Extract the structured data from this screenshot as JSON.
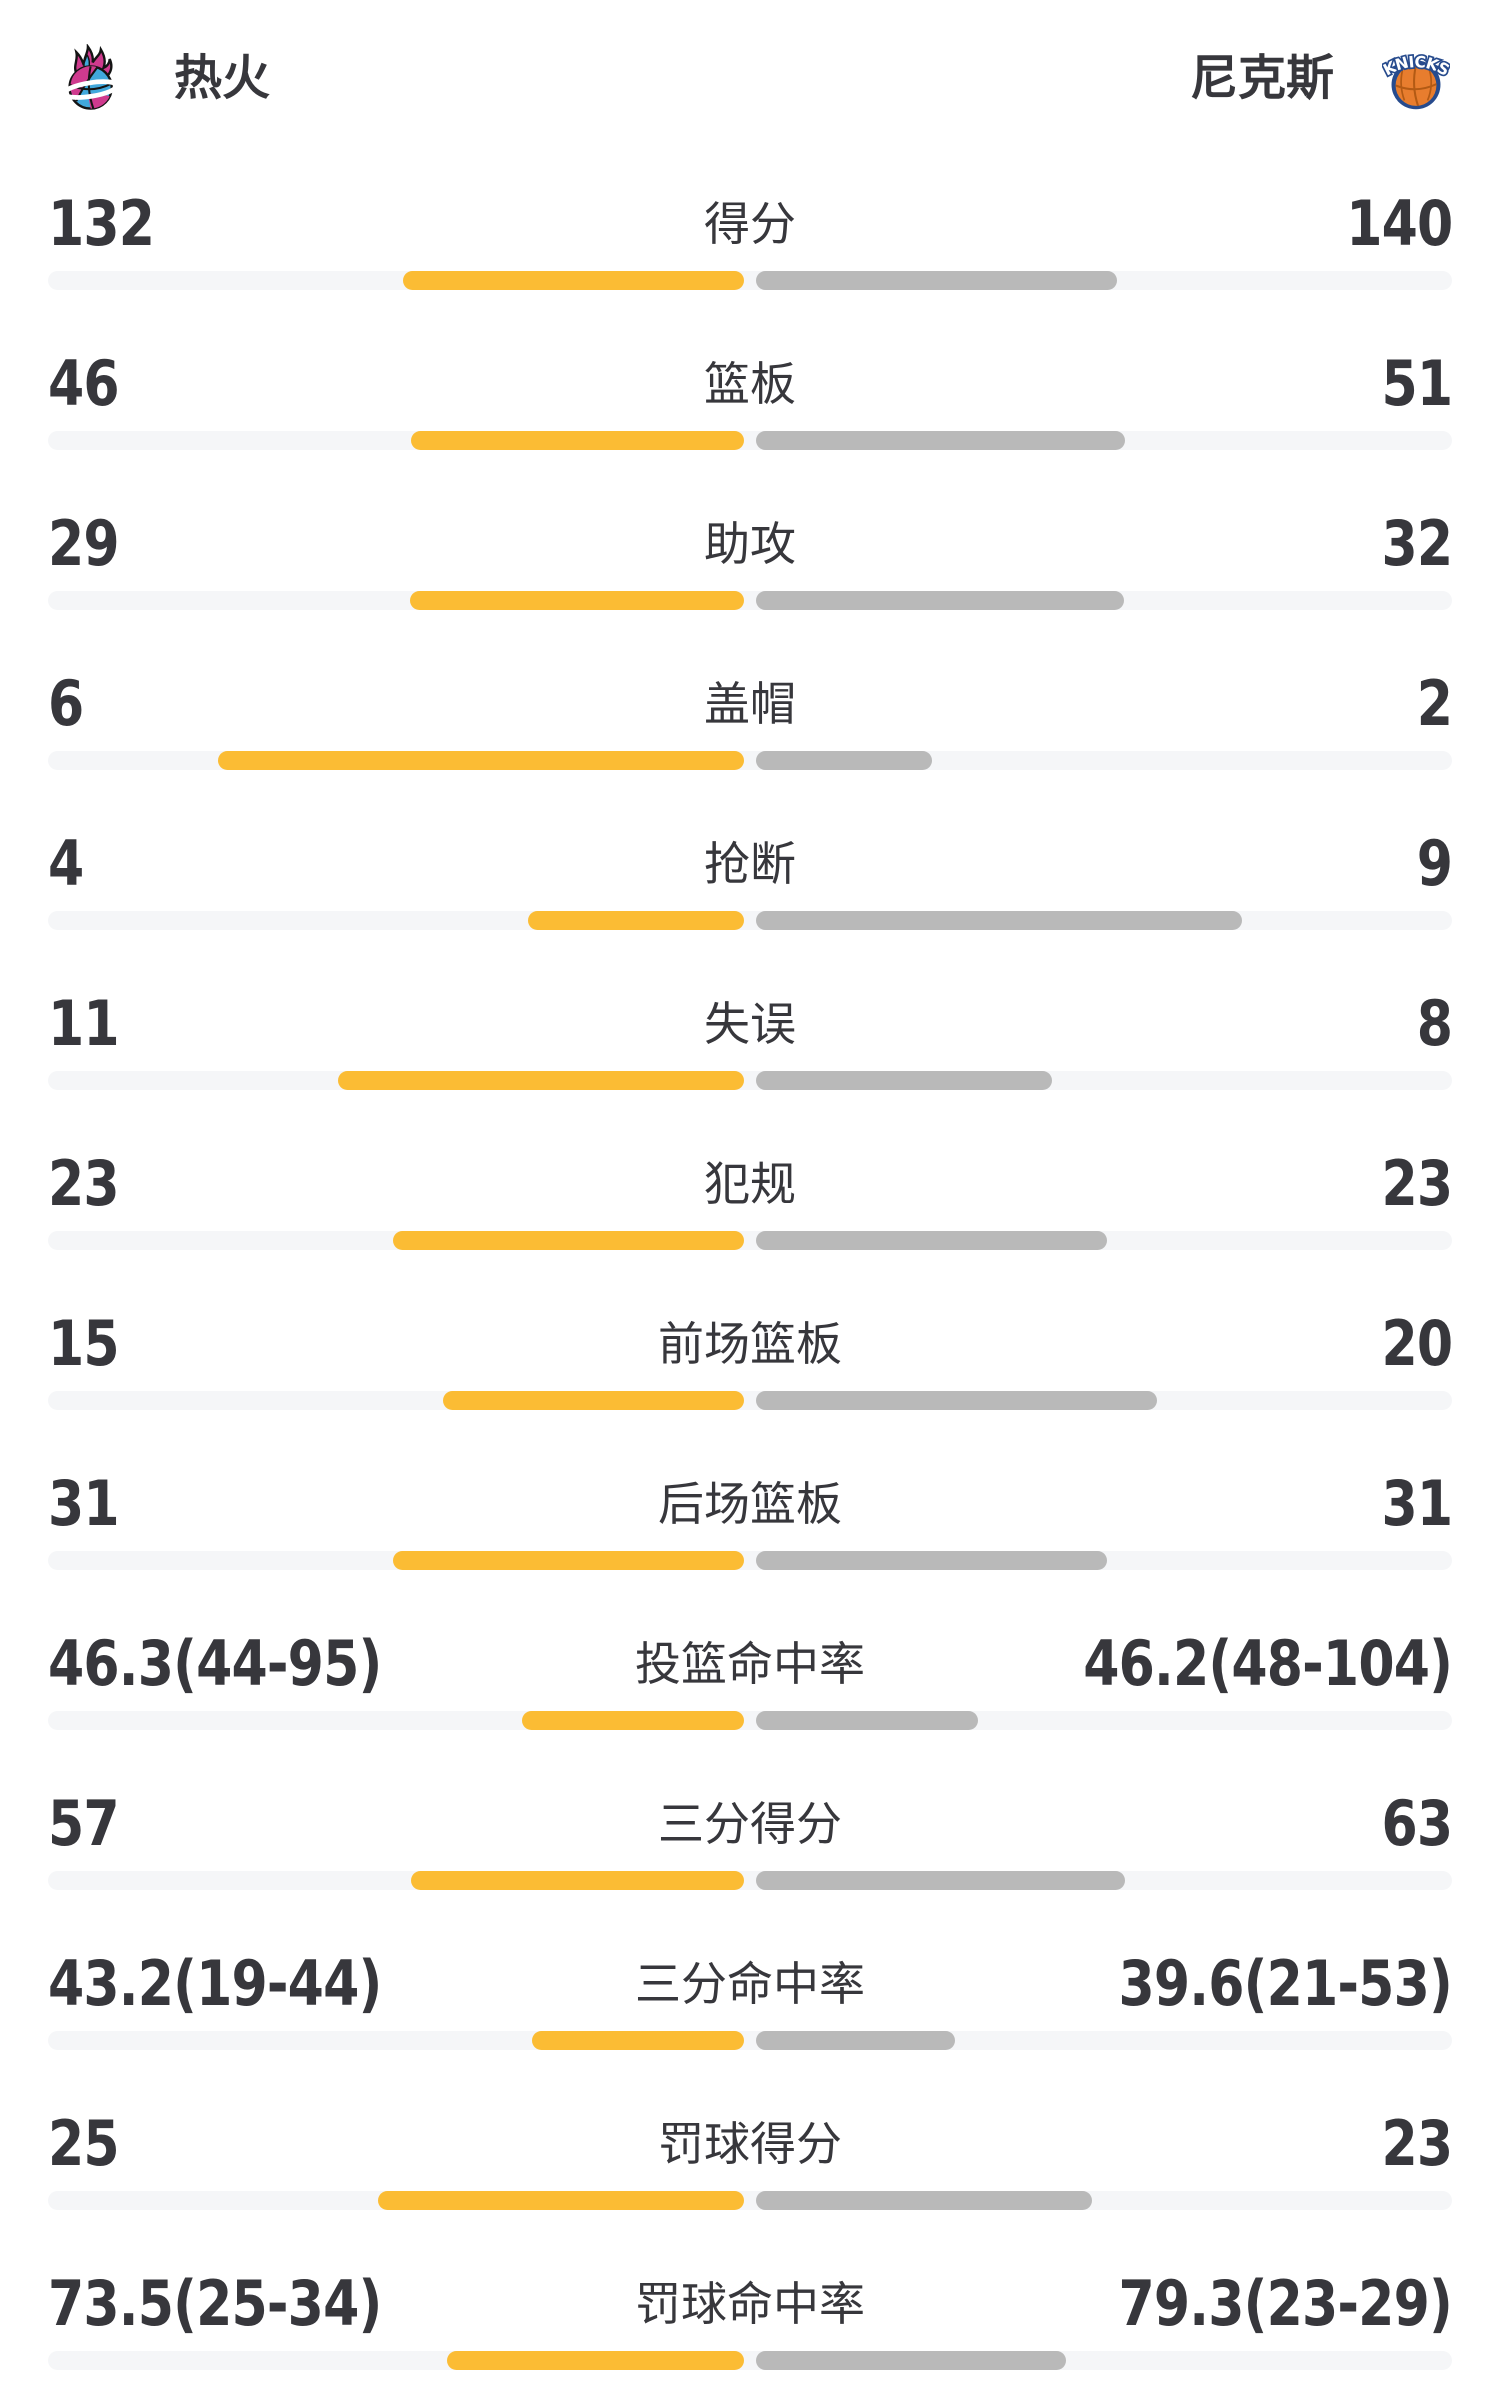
{
  "header": {
    "home": {
      "name": "热火",
      "logo_icon": "miami-heat-vice-flaming-basketball"
    },
    "away": {
      "name": "尼克斯",
      "logo_icon": "new-york-knicks-basketball",
      "logo_text": "KNICKS"
    }
  },
  "colors": {
    "home_bar": "#FBBC34",
    "away_bar": "#B9B9B9",
    "bar_track": "#F5F6F8",
    "text": "#37373C",
    "heat_pink": "#CF3A8E",
    "heat_blue": "#41A8DC",
    "knicks_orange": "#E87D2E",
    "knicks_navy": "#274B8D"
  },
  "chart_data": {
    "type": "bar",
    "subtype": "paired-horizontal-team-comparison",
    "legend_position": "header (team logos and names, home left / away right)",
    "grid": false,
    "categories": [
      "得分",
      "篮板",
      "助攻",
      "盖帽",
      "抢断",
      "失误",
      "犯规",
      "前场篮板",
      "后场篮板",
      "投篮命中率",
      "三分得分",
      "三分命中率",
      "罚球得分",
      "罚球命中率"
    ],
    "series": [
      {
        "name": "热火",
        "color": "#FBBC34",
        "values": [
          132,
          46,
          29,
          6,
          4,
          11,
          23,
          15,
          31,
          46.3,
          57,
          43.2,
          25,
          73.5
        ],
        "display": [
          "132",
          "46",
          "29",
          "6",
          "4",
          "11",
          "23",
          "15",
          "31",
          "46.3(44-95)",
          "57",
          "43.2(19-44)",
          "25",
          "73.5(25-34)"
        ]
      },
      {
        "name": "尼克斯",
        "color": "#B9B9B9",
        "values": [
          140,
          51,
          32,
          2,
          9,
          8,
          23,
          20,
          31,
          46.2,
          63,
          39.6,
          23,
          79.3
        ],
        "display": [
          "140",
          "51",
          "32",
          "2",
          "9",
          "8",
          "23",
          "20",
          "31",
          "46.2(48-104)",
          "63",
          "39.6(21-53)",
          "23",
          "79.3(23-29)"
        ]
      }
    ],
    "percent_row_indexes": [
      9,
      11,
      13
    ],
    "bar_scale_note": "bars grow outward from center; count rows: width = value/(home+away) of half track; percent rows: width = value/(value+100) of half track"
  }
}
